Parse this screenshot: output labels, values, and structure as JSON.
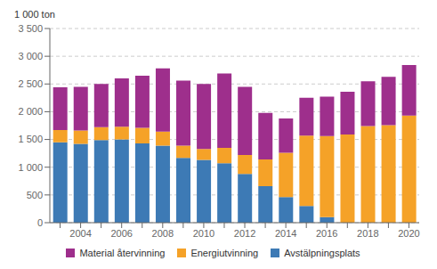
{
  "chart_data": {
    "type": "bar",
    "stacked": true,
    "ylabel": "1 000 ton",
    "categories": [
      null,
      "2004",
      null,
      "2006",
      null,
      "2008",
      null,
      "2010",
      null,
      "2012",
      null,
      "2014",
      null,
      "2016",
      null,
      "2018",
      null,
      "2020"
    ],
    "series": [
      {
        "name": "Avstälpningsplats",
        "color": "#3d7ab5",
        "values": [
          1450,
          1420,
          1490,
          1500,
          1430,
          1390,
          1170,
          1130,
          1070,
          880,
          660,
          460,
          300,
          100,
          0,
          0,
          0,
          0
        ]
      },
      {
        "name": "Energiutvinning",
        "color": "#f5a228",
        "values": [
          220,
          240,
          230,
          230,
          280,
          250,
          220,
          200,
          280,
          340,
          480,
          800,
          1270,
          1460,
          1590,
          1740,
          1760,
          1930
        ]
      },
      {
        "name": "Material återvinning",
        "color": "#9e2f8c",
        "values": [
          770,
          790,
          780,
          870,
          940,
          1140,
          1170,
          1170,
          1340,
          1230,
          840,
          620,
          680,
          710,
          770,
          810,
          870,
          910
        ]
      }
    ],
    "ylim": [
      0,
      3500
    ],
    "yticks": [
      0,
      500,
      {
        "value": 1000,
        "label": "1 000"
      },
      {
        "value": 1500,
        "label": "1 500"
      },
      {
        "value": 2000,
        "label": "2 000"
      },
      {
        "value": 2500,
        "label": "2 500"
      },
      {
        "value": 3000,
        "label": "3 000"
      },
      {
        "value": 3500,
        "label": "3 500"
      }
    ],
    "grid": true,
    "legend": "bottom"
  }
}
